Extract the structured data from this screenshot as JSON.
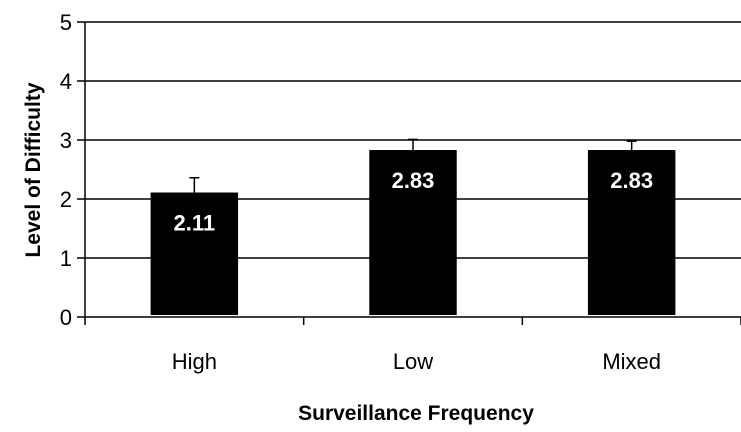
{
  "chart_data": {
    "type": "bar",
    "title": "",
    "xlabel": "Surveillance Frequency",
    "ylabel": "Level of Difficulty",
    "categories": [
      "High",
      "Low",
      "Mixed"
    ],
    "values": [
      2.11,
      2.83,
      2.83
    ],
    "data_labels": [
      "2.11",
      "2.83",
      "2.83"
    ],
    "error_bars": [
      0.25,
      0.18,
      0.15
    ],
    "ylim": [
      0,
      5
    ],
    "yticks": [
      "0",
      "1",
      "2",
      "3",
      "4",
      "5"
    ],
    "grid": true,
    "legend": "none",
    "bar_color": "#000000",
    "label_color": "#ffffff"
  }
}
